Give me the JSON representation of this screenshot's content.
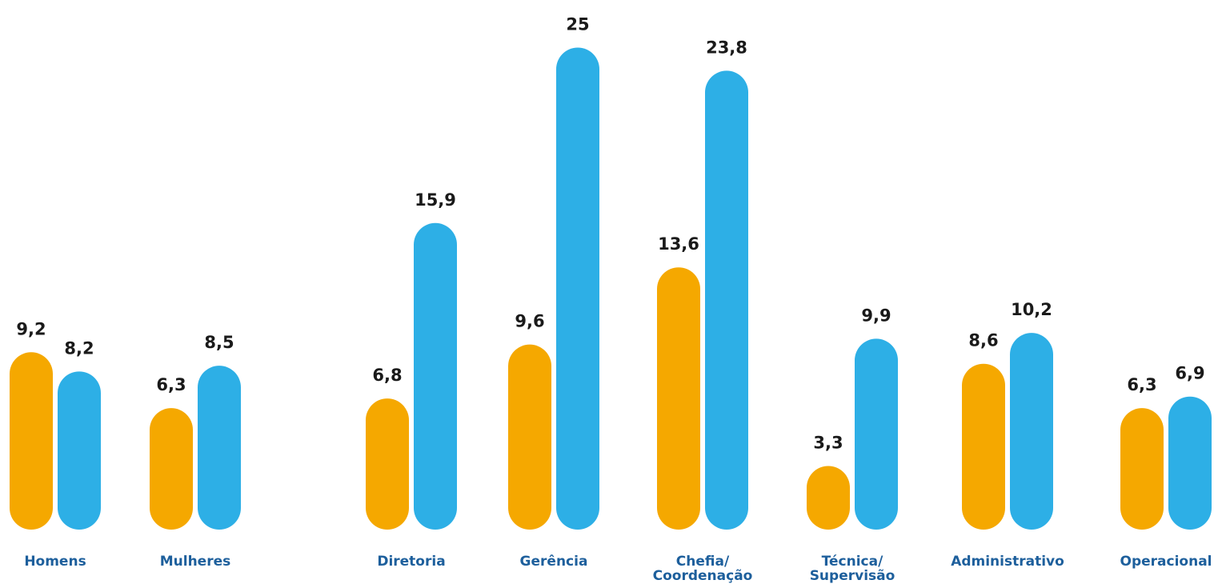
{
  "chart_data": {
    "type": "bar",
    "categories": [
      [
        "Homens"
      ],
      [
        "Mulheres"
      ],
      [
        "Diretoria"
      ],
      [
        "Gerência"
      ],
      [
        "Chefia/",
        "Coordenação"
      ],
      [
        "Técnica/",
        "Supervisão"
      ],
      [
        "Administrativo"
      ],
      [
        "Operacional"
      ]
    ],
    "series": [
      {
        "color": "#F5A800",
        "values": [
          9.2,
          6.3,
          6.8,
          9.6,
          13.6,
          3.3,
          8.6,
          6.3
        ],
        "labels": [
          "9,2",
          "6,3",
          "6,8",
          "9,6",
          "13,6",
          "3,3",
          "8,6",
          "6,3"
        ]
      },
      {
        "color": "#2DAFE6",
        "values": [
          8.2,
          8.5,
          15.9,
          25,
          23.8,
          9.9,
          10.2,
          6.9
        ],
        "labels": [
          "8,2",
          "8,5",
          "15,9",
          "25",
          "23,8",
          "9,9",
          "10,2",
          "6,9"
        ]
      }
    ],
    "ylim": [
      0,
      25
    ],
    "title": "",
    "xlabel": "",
    "ylabel": "",
    "grid": false,
    "legend": "none",
    "category_label_color": "#1D5F9C",
    "value_label_color": "#1A1A1A"
  }
}
